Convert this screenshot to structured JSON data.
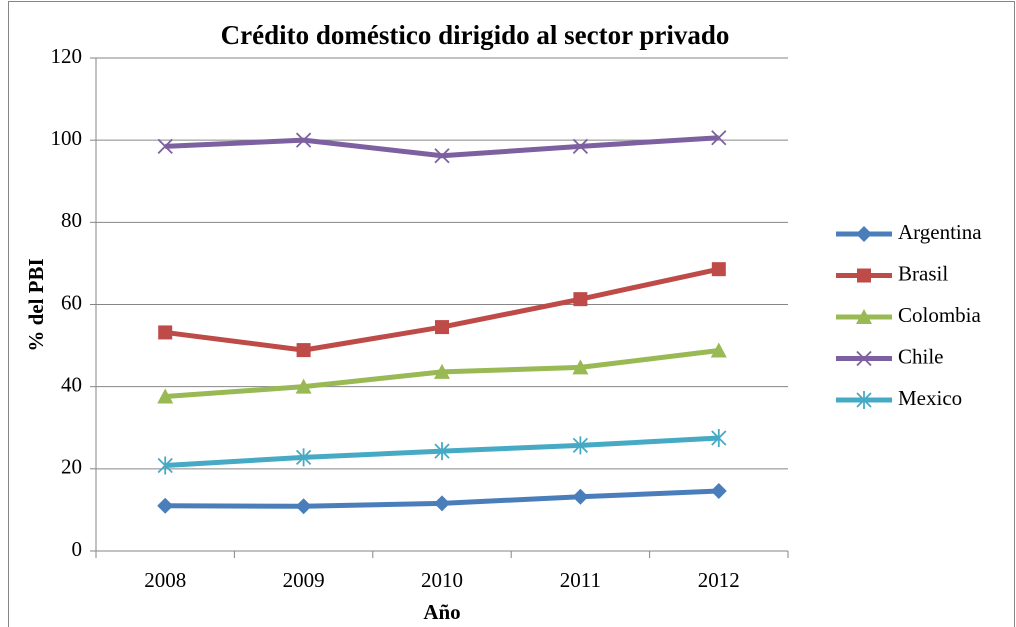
{
  "chart_data": {
    "type": "line",
    "title": "Crédito doméstico dirigido al sector privado",
    "x_label": "Año",
    "y_label": "% del PBI",
    "categories": [
      "2008",
      "2009",
      "2010",
      "2011",
      "2012"
    ],
    "series": [
      {
        "name": "Argentina",
        "color": "#4a7ebb",
        "marker": "diamond",
        "values": [
          11.0,
          10.9,
          11.6,
          13.2,
          14.6
        ]
      },
      {
        "name": "Brasil",
        "color": "#be4b48",
        "marker": "square",
        "values": [
          53.2,
          48.9,
          54.5,
          61.3,
          68.6
        ]
      },
      {
        "name": "Colombia",
        "color": "#98b954",
        "marker": "triangle",
        "values": [
          37.6,
          40.0,
          43.6,
          44.7,
          48.8
        ]
      },
      {
        "name": "Chile",
        "color": "#7d60a0",
        "marker": "x",
        "values": [
          98.5,
          100.0,
          96.2,
          98.5,
          100.6
        ]
      },
      {
        "name": "Mexico",
        "color": "#46aac5",
        "marker": "star",
        "values": [
          20.8,
          22.8,
          24.3,
          25.7,
          27.5
        ]
      }
    ],
    "ylim": [
      0,
      120
    ],
    "yticks": [
      0,
      20,
      40,
      60,
      80,
      100,
      120
    ],
    "grid": true,
    "legend": "right"
  }
}
